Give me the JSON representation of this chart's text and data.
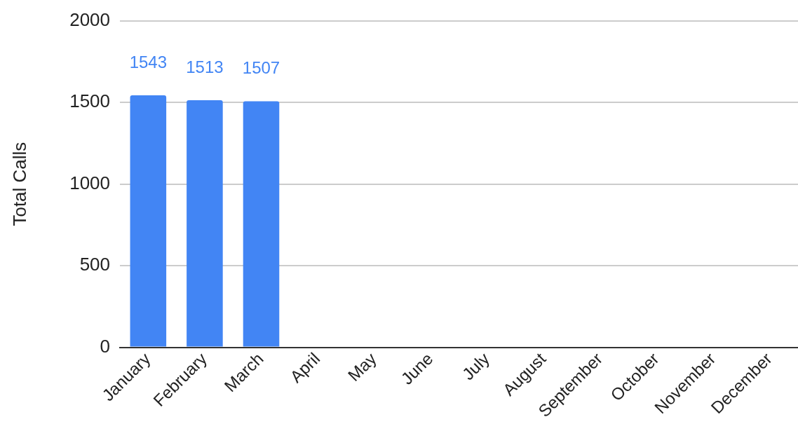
{
  "chart_data": {
    "type": "bar",
    "ylabel": "Total Calls",
    "categories": [
      "January",
      "February",
      "March",
      "April",
      "May",
      "June",
      "July",
      "August",
      "September",
      "October",
      "November",
      "December"
    ],
    "values": [
      1543,
      1513,
      1507,
      null,
      null,
      null,
      null,
      null,
      null,
      null,
      null,
      null
    ],
    "color": "#4285f4",
    "ylim": [
      0,
      2000
    ],
    "yticks": [
      0,
      500,
      1000,
      1500,
      2000
    ],
    "grid": "y",
    "data_labels": true
  }
}
